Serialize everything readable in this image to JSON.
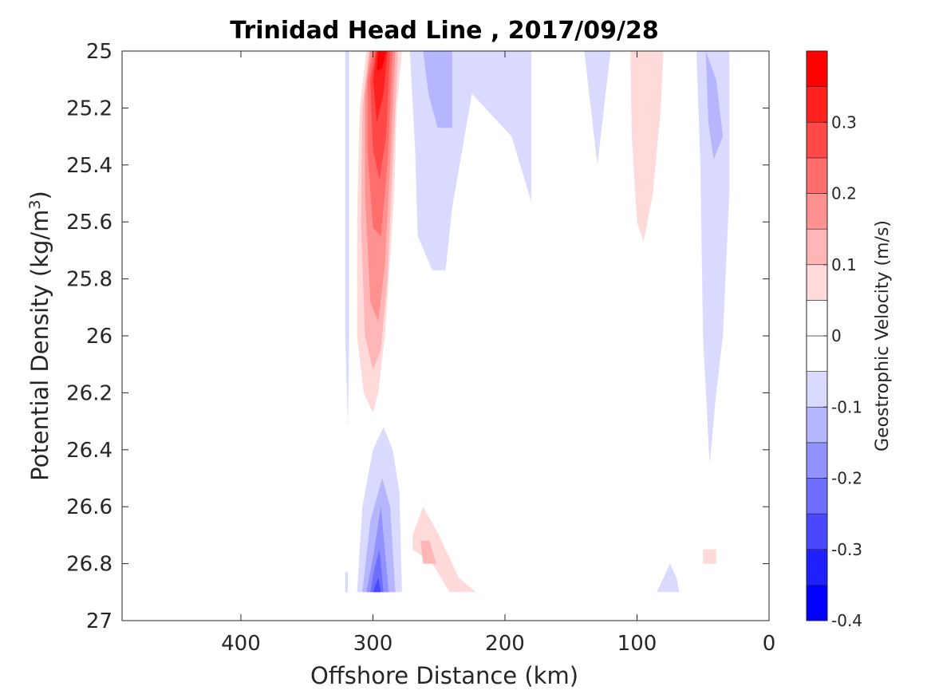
{
  "chart_data": {
    "type": "heatmap",
    "title": "Trinidad Head Line , 2017/09/28",
    "xlabel": "Offshore Distance (km)",
    "ylabel_main": "Potential Density (kg/m",
    "ylabel_sup": "3",
    "ylabel_close": ")",
    "xlim": [
      490,
      0
    ],
    "ylim": [
      25,
      27
    ],
    "x_reversed": true,
    "y_reversed": true,
    "xticks": [
      400,
      300,
      200,
      100,
      0
    ],
    "xtick_labels": [
      "400",
      "300",
      "200",
      "100",
      "0"
    ],
    "yticks": [
      25,
      25.2,
      25.4,
      25.6,
      25.8,
      26,
      26.2,
      26.4,
      26.6,
      26.8,
      27
    ],
    "ytick_labels": [
      "25",
      "25.2",
      "25.4",
      "25.6",
      "25.8",
      "26",
      "26.2",
      "26.4",
      "26.6",
      "26.8",
      "27"
    ],
    "colorbar": {
      "label": "Geostrophic Velocity (m/s)",
      "range": [
        -0.4,
        0.4
      ],
      "ticks": [
        -0.4,
        -0.3,
        -0.2,
        -0.1,
        0,
        0.1,
        0.2,
        0.3
      ],
      "tick_labels": [
        "-0.4",
        "-0.3",
        "-0.2",
        "-0.1",
        "0",
        "0.1",
        "0.2",
        "0.3"
      ],
      "levels": [
        {
          "from": -0.4,
          "to": -0.35,
          "color": "#0000ff"
        },
        {
          "from": -0.35,
          "to": -0.3,
          "color": "#2020ff"
        },
        {
          "from": -0.3,
          "to": -0.25,
          "color": "#4848ff"
        },
        {
          "from": -0.25,
          "to": -0.2,
          "color": "#6d6dff"
        },
        {
          "from": -0.2,
          "to": -0.15,
          "color": "#9191ff"
        },
        {
          "from": -0.15,
          "to": -0.1,
          "color": "#b6b6ff"
        },
        {
          "from": -0.1,
          "to": -0.05,
          "color": "#dadaff"
        },
        {
          "from": -0.05,
          "to": 0,
          "color": "#ffffff"
        },
        {
          "from": 0,
          "to": 0.05,
          "color": "#ffffff"
        },
        {
          "from": 0.05,
          "to": 0.1,
          "color": "#ffdada"
        },
        {
          "from": 0.1,
          "to": 0.15,
          "color": "#ffb6b6"
        },
        {
          "from": 0.15,
          "to": 0.2,
          "color": "#ff9191"
        },
        {
          "from": 0.2,
          "to": 0.25,
          "color": "#ff6d6d"
        },
        {
          "from": 0.25,
          "to": 0.3,
          "color": "#ff4848"
        },
        {
          "from": 0.3,
          "to": 0.35,
          "color": "#ff2020"
        },
        {
          "from": 0.35,
          "to": 0.4,
          "color": "#ff0000"
        }
      ]
    },
    "contour_regions": [
      {
        "name": "red-core-lvl1",
        "level": 0.075,
        "points": [
          [
            305,
            25
          ],
          [
            278,
            25
          ],
          [
            282,
            25.2
          ],
          [
            284,
            25.5
          ],
          [
            288,
            25.8
          ],
          [
            291,
            26.0
          ],
          [
            296,
            26.2
          ],
          [
            300,
            26.27
          ],
          [
            307,
            26.2
          ],
          [
            312,
            26.0
          ],
          [
            312,
            25.6
          ],
          [
            310,
            25.2
          ]
        ]
      },
      {
        "name": "red-core-lvl2",
        "level": 0.125,
        "points": [
          [
            303,
            25
          ],
          [
            281,
            25
          ],
          [
            285,
            25.4
          ],
          [
            289,
            25.8
          ],
          [
            294,
            26.05
          ],
          [
            300,
            26.12
          ],
          [
            306,
            26.0
          ],
          [
            309,
            25.6
          ],
          [
            308,
            25.2
          ]
        ]
      },
      {
        "name": "red-core-lvl3",
        "level": 0.175,
        "points": [
          [
            302,
            25
          ],
          [
            283,
            25
          ],
          [
            287,
            25.4
          ],
          [
            291,
            25.75
          ],
          [
            296,
            25.95
          ],
          [
            302,
            25.88
          ],
          [
            306,
            25.5
          ],
          [
            306,
            25.15
          ]
        ]
      },
      {
        "name": "red-core-lvl4",
        "level": 0.225,
        "points": [
          [
            300,
            25
          ],
          [
            285,
            25
          ],
          [
            289,
            25.4
          ],
          [
            294,
            25.65
          ],
          [
            300,
            25.62
          ],
          [
            304,
            25.35
          ],
          [
            304,
            25.1
          ]
        ]
      },
      {
        "name": "red-core-lvl5",
        "level": 0.275,
        "points": [
          [
            298,
            25
          ],
          [
            287,
            25
          ],
          [
            290,
            25.3
          ],
          [
            295,
            25.45
          ],
          [
            300,
            25.35
          ],
          [
            302,
            25.1
          ]
        ]
      },
      {
        "name": "red-core-lvl6",
        "level": 0.325,
        "points": [
          [
            297,
            25
          ],
          [
            289,
            25
          ],
          [
            292,
            25.15
          ],
          [
            297,
            25.25
          ],
          [
            300,
            25.1
          ]
        ]
      },
      {
        "name": "red-core-lvl7",
        "level": 0.375,
        "points": [
          [
            296,
            25
          ],
          [
            290,
            25
          ],
          [
            293,
            25.06
          ],
          [
            297,
            25.07
          ]
        ]
      },
      {
        "name": "blue-thin-west",
        "level": -0.075,
        "points": [
          [
            321,
            25
          ],
          [
            318,
            25
          ],
          [
            318,
            26.0
          ],
          [
            319,
            26.32
          ],
          [
            321,
            26.0
          ]
        ]
      },
      {
        "name": "blue-wide-north",
        "level": -0.075,
        "points": [
          [
            272,
            25
          ],
          [
            180,
            25
          ],
          [
            180,
            25.53
          ],
          [
            195,
            25.3
          ],
          [
            225,
            25.15
          ],
          [
            240,
            25.55
          ],
          [
            245,
            25.77
          ],
          [
            255,
            25.77
          ],
          [
            266,
            25.65
          ],
          [
            268,
            25.35
          ]
        ]
      },
      {
        "name": "blue-patch-north",
        "level": -0.125,
        "points": [
          [
            262,
            25
          ],
          [
            240,
            25
          ],
          [
            240,
            25.27
          ],
          [
            251,
            25.27
          ],
          [
            258,
            25.15
          ]
        ]
      },
      {
        "name": "blue-mid-north",
        "level": -0.075,
        "points": [
          [
            140,
            25
          ],
          [
            120,
            25
          ],
          [
            125,
            25.2
          ],
          [
            130,
            25.4
          ],
          [
            135,
            25.2
          ]
        ]
      },
      {
        "name": "blue-east",
        "level": -0.075,
        "points": [
          [
            55,
            25
          ],
          [
            30,
            25
          ],
          [
            30,
            25.5
          ],
          [
            35,
            26.0
          ],
          [
            40,
            26.2
          ],
          [
            45,
            26.45
          ],
          [
            50,
            26.0
          ],
          [
            52,
            25.4
          ]
        ]
      },
      {
        "name": "blue-east-core",
        "level": -0.125,
        "points": [
          [
            48,
            25
          ],
          [
            40,
            25.1
          ],
          [
            35,
            25.3
          ],
          [
            42,
            25.38
          ],
          [
            46,
            25.25
          ]
        ]
      },
      {
        "name": "blue-deep-lvl1",
        "level": -0.075,
        "points": [
          [
            312,
            26.9
          ],
          [
            278,
            26.9
          ],
          [
            280,
            26.55
          ],
          [
            285,
            26.4
          ],
          [
            292,
            26.32
          ],
          [
            300,
            26.4
          ],
          [
            308,
            26.6
          ]
        ]
      },
      {
        "name": "blue-deep-lvl2",
        "level": -0.125,
        "points": [
          [
            308,
            26.9
          ],
          [
            283,
            26.9
          ],
          [
            287,
            26.6
          ],
          [
            293,
            26.5
          ],
          [
            302,
            26.65
          ]
        ]
      },
      {
        "name": "blue-deep-lvl3",
        "level": -0.175,
        "points": [
          [
            305,
            26.9
          ],
          [
            288,
            26.9
          ],
          [
            291,
            26.75
          ],
          [
            294,
            26.6
          ],
          [
            300,
            26.78
          ]
        ]
      },
      {
        "name": "blue-deep-lvl4",
        "level": -0.225,
        "points": [
          [
            302,
            26.9
          ],
          [
            292,
            26.9
          ],
          [
            295,
            26.75
          ],
          [
            299,
            26.82
          ]
        ]
      },
      {
        "name": "blue-deep-lvl5",
        "level": -0.275,
        "points": [
          [
            300,
            26.9
          ],
          [
            294,
            26.9
          ],
          [
            296,
            26.85
          ]
        ]
      },
      {
        "name": "blue-deep-edge",
        "level": -0.075,
        "points": [
          [
            321,
            26.83
          ],
          [
            319,
            26.83
          ],
          [
            319,
            26.9
          ],
          [
            321,
            26.9
          ]
        ]
      },
      {
        "name": "blue-deep-east",
        "level": -0.075,
        "points": [
          [
            85,
            26.9
          ],
          [
            68,
            26.9
          ],
          [
            70,
            26.85
          ],
          [
            75,
            26.8
          ]
        ]
      },
      {
        "name": "red-north-east",
        "level": 0.075,
        "points": [
          [
            105,
            25
          ],
          [
            80,
            25
          ],
          [
            82,
            25.2
          ],
          [
            88,
            25.5
          ],
          [
            95,
            25.67
          ],
          [
            100,
            25.6
          ],
          [
            104,
            25.3
          ]
        ]
      },
      {
        "name": "red-deep-lvl1",
        "level": 0.075,
        "points": [
          [
            270,
            26.7
          ],
          [
            262,
            26.6
          ],
          [
            250,
            26.7
          ],
          [
            235,
            26.85
          ],
          [
            222,
            26.9
          ],
          [
            242,
            26.9
          ],
          [
            255,
            26.8
          ],
          [
            270,
            26.75
          ]
        ]
      },
      {
        "name": "red-deep-lvl2",
        "level": 0.125,
        "points": [
          [
            264,
            26.72
          ],
          [
            257,
            26.72
          ],
          [
            252,
            26.8
          ],
          [
            262,
            26.8
          ]
        ]
      },
      {
        "name": "red-deep-east",
        "level": 0.075,
        "points": [
          [
            50,
            26.75
          ],
          [
            40,
            26.75
          ],
          [
            40,
            26.8
          ],
          [
            50,
            26.8
          ]
        ]
      }
    ]
  }
}
